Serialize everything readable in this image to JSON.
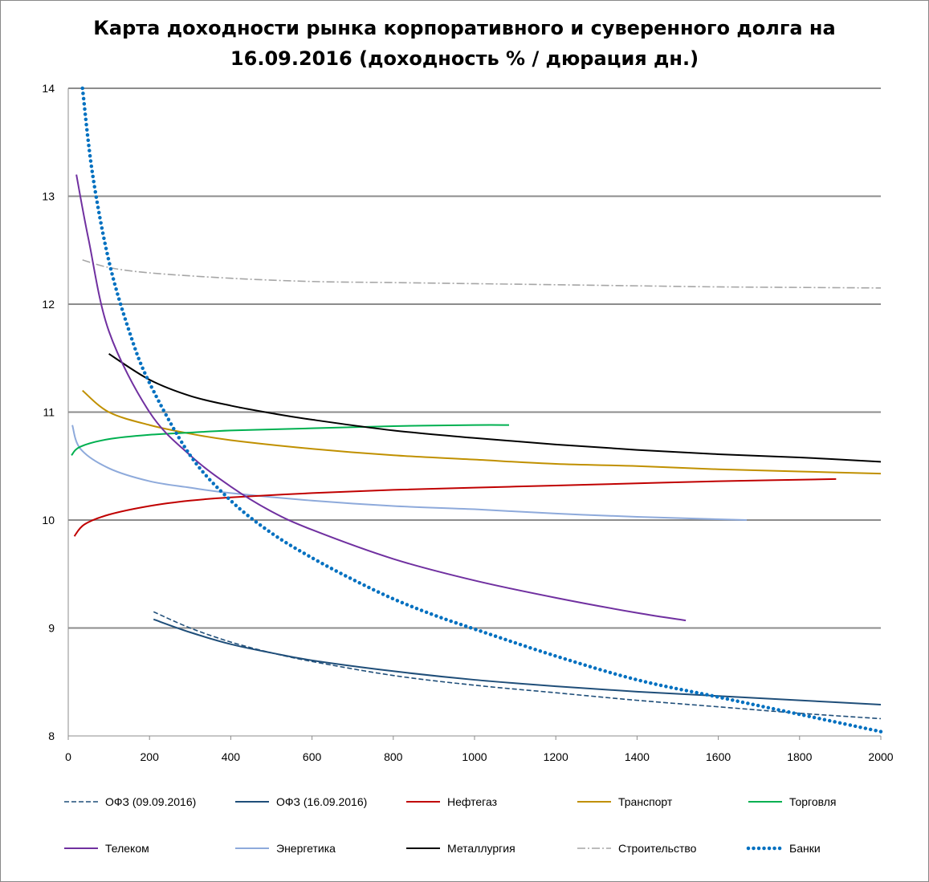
{
  "chart_data": {
    "type": "line",
    "title_line1": "Карта доходности рынка корпоративного и суверенного долга на",
    "title_line2": "16.09.2016  (доходность % / дюрация дн.)",
    "xlim": [
      0,
      2000
    ],
    "ylim": [
      8,
      14
    ],
    "x_ticks": [
      "0",
      "200",
      "400",
      "600",
      "800",
      "1000",
      "1200",
      "1400",
      "1600",
      "1800",
      "2000"
    ],
    "y_ticks": [
      "8",
      "9",
      "10",
      "11",
      "12",
      "13",
      "14"
    ],
    "grid": "horizontal",
    "legend_position": "bottom",
    "series": [
      {
        "name": "ОФЗ (09.09.2016)",
        "color": "#1f4e79",
        "style": "dashed",
        "x": [
          210,
          300,
          400,
          500,
          600,
          800,
          1000,
          1200,
          1400,
          1600,
          1800,
          2000
        ],
        "y": [
          9.15,
          9.0,
          8.87,
          8.77,
          8.69,
          8.56,
          8.47,
          8.4,
          8.33,
          8.27,
          8.21,
          8.16
        ]
      },
      {
        "name": "ОФЗ (16.09.2016)",
        "color": "#1f4e79",
        "style": "solid",
        "x": [
          210,
          300,
          400,
          500,
          600,
          800,
          1000,
          1200,
          1400,
          1600,
          1800,
          2000
        ],
        "y": [
          9.08,
          8.96,
          8.85,
          8.77,
          8.7,
          8.6,
          8.52,
          8.46,
          8.41,
          8.37,
          8.33,
          8.29
        ]
      },
      {
        "name": "Нефтегаз",
        "color": "#c00000",
        "style": "solid",
        "x": [
          15,
          40,
          100,
          200,
          300,
          400,
          600,
          800,
          1000,
          1200,
          1400,
          1600,
          1890
        ],
        "y": [
          9.85,
          9.96,
          10.05,
          10.13,
          10.18,
          10.21,
          10.25,
          10.28,
          10.3,
          10.32,
          10.34,
          10.36,
          10.38
        ]
      },
      {
        "name": "Транспорт",
        "color": "#c09000",
        "style": "solid",
        "x": [
          35,
          100,
          200,
          300,
          400,
          600,
          800,
          1000,
          1200,
          1400,
          1600,
          1800,
          2000
        ],
        "y": [
          11.2,
          11.0,
          10.88,
          10.8,
          10.74,
          10.66,
          10.6,
          10.56,
          10.52,
          10.5,
          10.47,
          10.45,
          10.43
        ]
      },
      {
        "name": "Торговля",
        "color": "#00b050",
        "style": "solid",
        "x": [
          8,
          30,
          100,
          200,
          300,
          400,
          600,
          800,
          1000,
          1085
        ],
        "y": [
          10.6,
          10.68,
          10.75,
          10.79,
          10.81,
          10.83,
          10.85,
          10.87,
          10.88,
          10.88
        ]
      },
      {
        "name": "Телеком",
        "color": "#7030a0",
        "style": "solid",
        "x": [
          20,
          50,
          100,
          200,
          300,
          400,
          500,
          600,
          800,
          1000,
          1200,
          1400,
          1520
        ],
        "y": [
          13.2,
          12.6,
          11.75,
          11.0,
          10.6,
          10.31,
          10.08,
          9.91,
          9.64,
          9.44,
          9.28,
          9.14,
          9.07
        ]
      },
      {
        "name": "Энергетика",
        "color": "#8eaadb",
        "style": "solid",
        "x": [
          10,
          30,
          100,
          200,
          300,
          400,
          600,
          800,
          1000,
          1200,
          1400,
          1670
        ],
        "y": [
          10.88,
          10.66,
          10.48,
          10.36,
          10.3,
          10.25,
          10.18,
          10.13,
          10.1,
          10.06,
          10.03,
          10.0
        ]
      },
      {
        "name": "Металлургия",
        "color": "#000000",
        "style": "solid",
        "x": [
          100,
          200,
          300,
          400,
          500,
          600,
          800,
          1000,
          1200,
          1400,
          1600,
          1800,
          2000
        ],
        "y": [
          11.54,
          11.3,
          11.15,
          11.06,
          10.99,
          10.93,
          10.83,
          10.76,
          10.7,
          10.65,
          10.61,
          10.58,
          10.54
        ]
      },
      {
        "name": "Строительство",
        "color": "#a6a6a6",
        "style": "dashdot",
        "x": [
          35,
          100,
          200,
          400,
          600,
          800,
          1000,
          1200,
          1400,
          1600,
          1800,
          2000
        ],
        "y": [
          12.41,
          12.34,
          12.29,
          12.24,
          12.21,
          12.2,
          12.19,
          12.18,
          12.17,
          12.16,
          12.155,
          12.15
        ]
      },
      {
        "name": "Банки",
        "color": "#0070c0",
        "style": "dotted",
        "x": [
          35,
          60,
          100,
          150,
          200,
          300,
          400,
          500,
          600,
          700,
          800,
          900,
          1000,
          1200,
          1400,
          1600,
          1800,
          2000
        ],
        "y": [
          14.0,
          13.2,
          12.4,
          11.75,
          11.27,
          10.6,
          10.18,
          9.88,
          9.65,
          9.45,
          9.27,
          9.12,
          8.99,
          8.74,
          8.52,
          8.36,
          8.2,
          8.04
        ]
      }
    ]
  }
}
